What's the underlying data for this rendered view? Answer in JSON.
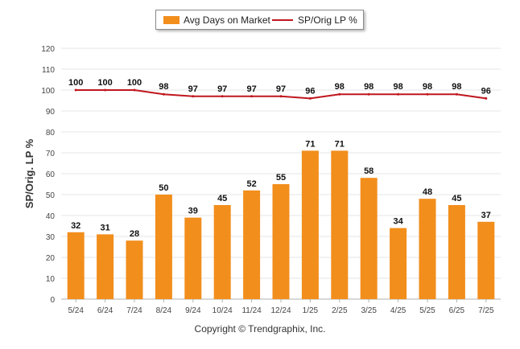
{
  "legend": {
    "bar_label": "Avg Days on Market",
    "line_label": "SP/Orig LP %"
  },
  "copyright": "Copyright © Trendgraphix, Inc.",
  "colors": {
    "bar": "#f28e1c",
    "line": "#c0171e",
    "grid": "#e6e6e6"
  },
  "chart_data": {
    "type": "bar",
    "categories": [
      "5/24",
      "6/24",
      "7/24",
      "8/24",
      "9/24",
      "10/24",
      "11/24",
      "12/24",
      "1/25",
      "2/25",
      "3/25",
      "4/25",
      "5/25",
      "6/25",
      "7/25"
    ],
    "series": [
      {
        "name": "Avg Days on Market",
        "type": "bar",
        "values": [
          32,
          31,
          28,
          50,
          39,
          45,
          52,
          55,
          71,
          71,
          58,
          34,
          48,
          45,
          37
        ]
      },
      {
        "name": "SP/Orig LP %",
        "type": "line",
        "values": [
          100,
          100,
          100,
          98,
          97,
          97,
          97,
          97,
          96,
          98,
          98,
          98,
          98,
          98,
          96
        ]
      }
    ],
    "ylabel": "SP/Orig. LP %",
    "ylim": [
      0,
      120
    ],
    "yticks": [
      0,
      10,
      20,
      30,
      40,
      50,
      60,
      70,
      80,
      90,
      100,
      110,
      120
    ],
    "grid": true,
    "legend_position": "top"
  }
}
